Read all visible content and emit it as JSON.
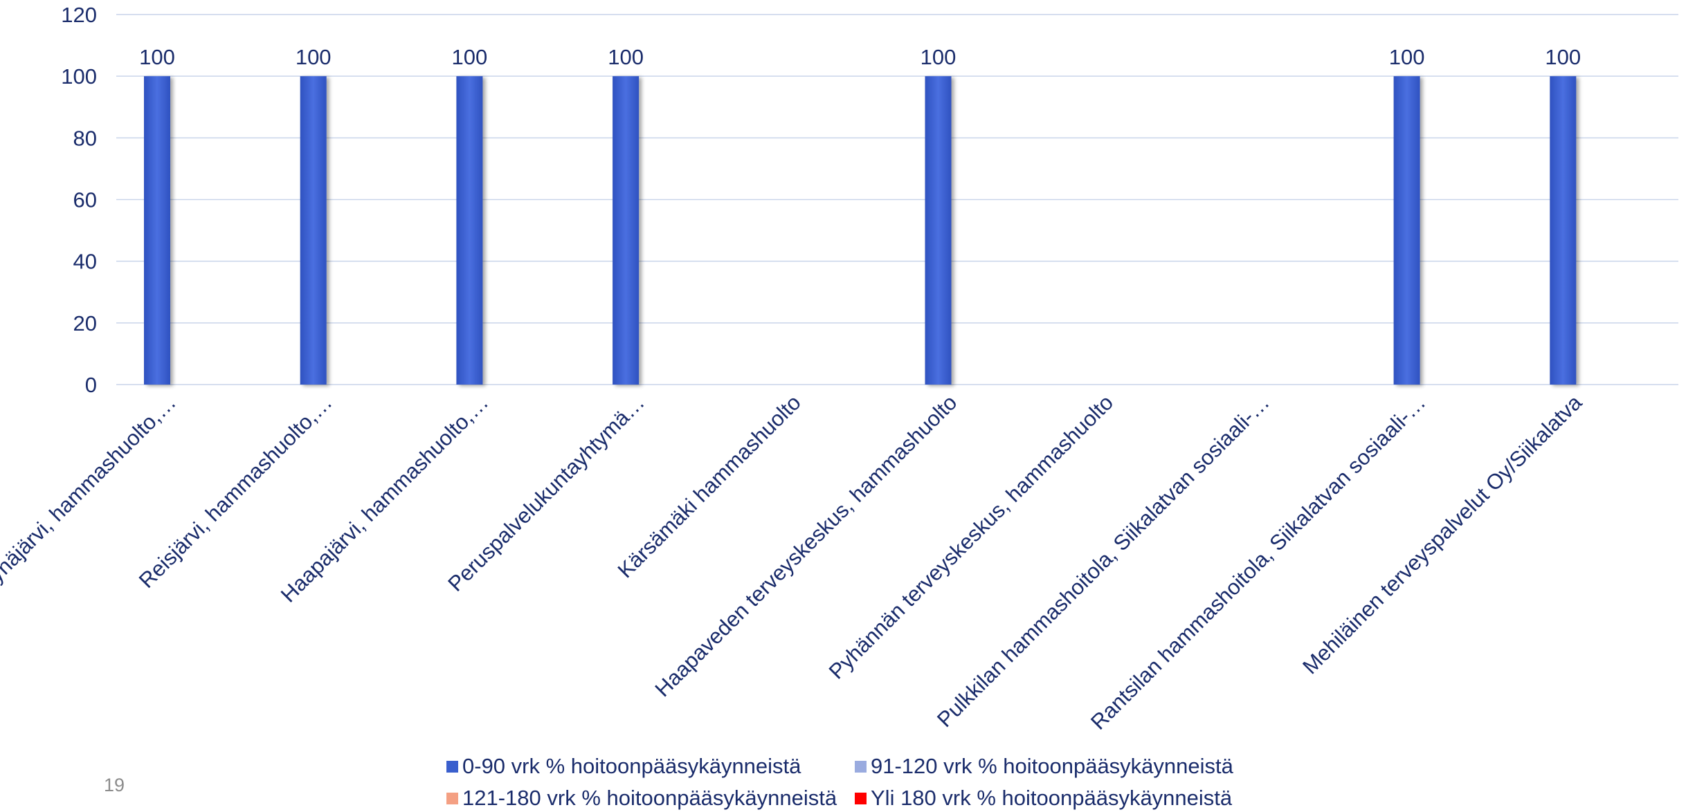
{
  "page_number": "19",
  "chart_data": {
    "type": "bar",
    "title": "",
    "xlabel": "",
    "ylabel": "",
    "ylim": [
      0,
      120
    ],
    "y_ticks": [
      0,
      20,
      40,
      60,
      80,
      100,
      120
    ],
    "grid": true,
    "legend_position": "bottom",
    "categories": [
      "Pyhäjärvi, hammashuolto,…",
      "Reisjärvi, hammashuolto,…",
      "Haapajärvi, hammashuolto,…",
      "Peruspalvelukuntayhtymä…",
      "Kärsämäki hammashuolto",
      "Haapaveden terveyskeskus, hammashuolto",
      "Pyhännän terveyskeskus, hammashuolto",
      "Pulkkilan hammashoitola, Siikalatvan sosiaali-…",
      "Rantsilan hammashoitola, Siikalatvan sosiaali-…",
      "Mehiläinen terveyspalvelut Oy/Siikalatva"
    ],
    "series": [
      {
        "name": "0-90 vrk % hoitoonpääsykäynneistä",
        "color": "#3a5fcd",
        "values": [
          100,
          100,
          100,
          100,
          null,
          100,
          null,
          null,
          100,
          100
        ],
        "data_labels": [
          "100",
          "100",
          "100",
          "100",
          "",
          "100",
          "",
          "",
          "100",
          "100"
        ]
      },
      {
        "name": "91-120 vrk % hoitoonpääsykäynneistä",
        "color": "#9aabdf",
        "values": [
          null,
          null,
          null,
          null,
          null,
          null,
          null,
          null,
          null,
          null
        ]
      },
      {
        "name": "121-180 vrk % hoitoonpääsykäynneistä",
        "color": "#f4a083",
        "values": [
          null,
          null,
          null,
          null,
          null,
          null,
          null,
          null,
          null,
          null
        ]
      },
      {
        "name": "Yli 180 vrk % hoitoonpääsykäynneistä",
        "color": "#ff0000",
        "values": [
          null,
          null,
          null,
          null,
          null,
          null,
          null,
          null,
          null,
          null
        ]
      }
    ]
  },
  "colors": {
    "axis_text": "#1a2c6b",
    "gridline": "#c9d4ea"
  }
}
